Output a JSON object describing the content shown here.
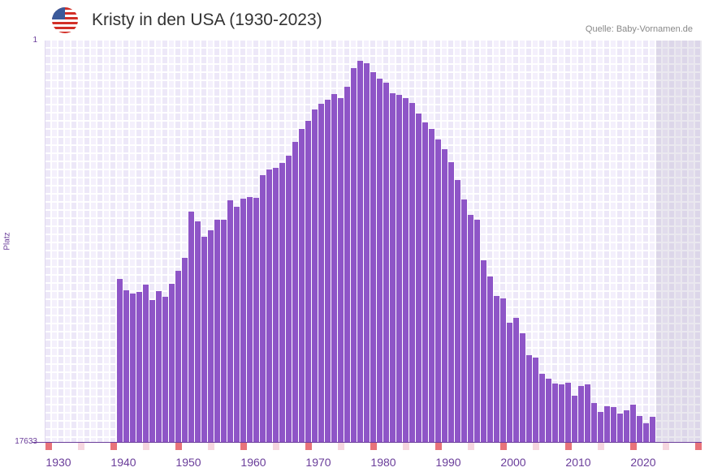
{
  "header": {
    "title": "Kristy in den USA (1930-2023)",
    "source": "Quelle: Baby-Vornamen.de"
  },
  "colors": {
    "bar": "#8e55c7",
    "tick_major": "#e8737a",
    "tick_minor": "#f6d6df",
    "axis_text": "#6a3d9a"
  },
  "chart_data": {
    "type": "bar",
    "title": "Kristy in den USA (1930-2023)",
    "xlabel": "",
    "ylabel": "Platz",
    "y_axis": {
      "top_label": "1",
      "bottom_label": "17633",
      "reversed": true,
      "value_meaning": "bar height as percent of axis (100 = rank 1, 0 = rank 17633)"
    },
    "xlim": [
      1930,
      2030
    ],
    "x_tick_labels": [
      "1930",
      "1940",
      "1950",
      "1960",
      "1970",
      "1980",
      "1990",
      "2000",
      "2010",
      "2020"
    ],
    "future_shaded_from": 2024,
    "years": [
      1941,
      1942,
      1943,
      1944,
      1945,
      1946,
      1947,
      1948,
      1949,
      1950,
      1951,
      1952,
      1953,
      1954,
      1955,
      1956,
      1957,
      1958,
      1959,
      1960,
      1961,
      1962,
      1963,
      1964,
      1965,
      1966,
      1967,
      1968,
      1969,
      1970,
      1971,
      1972,
      1973,
      1974,
      1975,
      1976,
      1977,
      1978,
      1979,
      1980,
      1981,
      1982,
      1983,
      1984,
      1985,
      1986,
      1987,
      1988,
      1989,
      1990,
      1991,
      1992,
      1993,
      1994,
      1995,
      1996,
      1997,
      1998,
      1999,
      2000,
      2001,
      2002,
      2003,
      2004,
      2005,
      2006,
      2007,
      2008,
      2009,
      2010,
      2011,
      2012,
      2013,
      2014,
      2015,
      2016,
      2017,
      2018,
      2019,
      2020,
      2021,
      2022,
      2023
    ],
    "values": [
      40.6,
      37.8,
      37.0,
      37.4,
      39.2,
      35.4,
      37.6,
      36.2,
      39.4,
      42.6,
      45.9,
      57.4,
      55.0,
      51.1,
      52.7,
      55.4,
      55.4,
      60.2,
      58.6,
      60.6,
      61.0,
      60.8,
      66.5,
      67.9,
      68.3,
      69.5,
      71.3,
      74.7,
      78.0,
      80.0,
      82.8,
      84.2,
      85.3,
      86.7,
      85.7,
      88.5,
      93.1,
      94.9,
      94.3,
      92.1,
      90.5,
      89.5,
      86.9,
      86.5,
      85.7,
      84.4,
      81.8,
      79.6,
      78.0,
      75.4,
      72.9,
      69.7,
      65.3,
      60.4,
      56.6,
      55.4,
      45.3,
      41.2,
      36.4,
      35.8,
      29.7,
      30.9,
      27.1,
      21.6,
      21.0,
      17.0,
      15.8,
      14.5,
      14.3,
      14.7,
      11.5,
      13.9,
      14.3,
      9.7,
      7.5,
      8.9,
      8.7,
      7.1,
      7.9,
      9.3,
      6.5,
      4.6,
      6.3
    ]
  }
}
